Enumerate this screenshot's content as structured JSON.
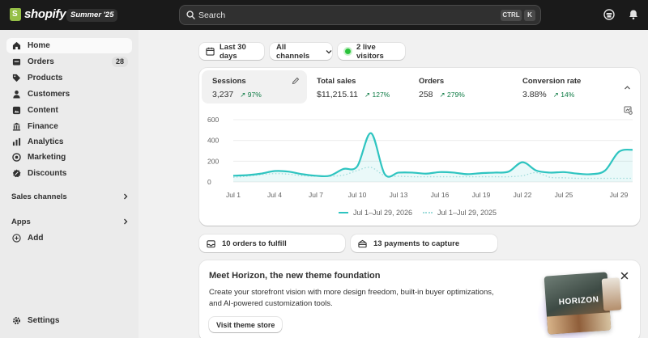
{
  "brand": {
    "name": "shopify",
    "edition": "Summer '25"
  },
  "search": {
    "placeholder": "Search",
    "shortcut_ctrl": "CTRL",
    "shortcut_key": "K"
  },
  "sidebar": {
    "items": [
      {
        "label": "Home",
        "icon": "home-icon",
        "active": true
      },
      {
        "label": "Orders",
        "icon": "orders-icon",
        "badge": "28"
      },
      {
        "label": "Products",
        "icon": "tag-icon"
      },
      {
        "label": "Customers",
        "icon": "person-icon"
      },
      {
        "label": "Content",
        "icon": "content-icon"
      },
      {
        "label": "Finance",
        "icon": "bank-icon"
      },
      {
        "label": "Analytics",
        "icon": "bar-chart-icon"
      },
      {
        "label": "Marketing",
        "icon": "target-icon"
      },
      {
        "label": "Discounts",
        "icon": "discount-icon"
      }
    ],
    "sales_channels": "Sales channels",
    "apps": "Apps",
    "add": "Add",
    "settings": "Settings"
  },
  "filters": {
    "date_range": "Last 30 days",
    "channels": "All channels",
    "live_visitors": "2 live visitors"
  },
  "metrics": [
    {
      "label": "Sessions",
      "value": "3,237",
      "delta": "↗ 97%"
    },
    {
      "label": "Total sales",
      "value": "$11,215.11",
      "delta": "↗ 127%"
    },
    {
      "label": "Orders",
      "value": "258",
      "delta": "↗ 279%"
    },
    {
      "label": "Conversion rate",
      "value": "3.88%",
      "delta": "↗ 14%"
    }
  ],
  "chart_data": {
    "type": "line",
    "ylim": [
      0,
      600
    ],
    "yticks": [
      "600",
      "400",
      "200",
      "0"
    ],
    "x_tick_labels": [
      "Jul 1",
      "Jul 4",
      "Jul 7",
      "Jul 10",
      "Jul 13",
      "Jul 16",
      "Jul 19",
      "Jul 22",
      "Jul 25",
      "Jul 29"
    ],
    "x": [
      "Jul 1",
      "Jul 2",
      "Jul 3",
      "Jul 4",
      "Jul 5",
      "Jul 6",
      "Jul 7",
      "Jul 8",
      "Jul 9",
      "Jul 10",
      "Jul 11",
      "Jul 12",
      "Jul 13",
      "Jul 14",
      "Jul 15",
      "Jul 16",
      "Jul 17",
      "Jul 18",
      "Jul 19",
      "Jul 20",
      "Jul 21",
      "Jul 22",
      "Jul 23",
      "Jul 24",
      "Jul 25",
      "Jul 26",
      "Jul 27",
      "Jul 28",
      "Jul 29",
      "Jul 30"
    ],
    "series": [
      {
        "name": "Jul 1–Jul 29, 2026",
        "color": "#2ec4c0",
        "style": "solid",
        "values": [
          60,
          65,
          80,
          105,
          100,
          75,
          60,
          60,
          125,
          150,
          470,
          75,
          90,
          90,
          80,
          95,
          90,
          75,
          85,
          90,
          100,
          190,
          110,
          90,
          95,
          80,
          75,
          110,
          290,
          310
        ]
      },
      {
        "name": "Jul 1–Jul 29, 2025",
        "color": "#9fdcdb",
        "style": "dotted",
        "values": [
          45,
          55,
          70,
          80,
          75,
          60,
          55,
          55,
          65,
          110,
          140,
          60,
          55,
          50,
          50,
          50,
          50,
          50,
          50,
          50,
          50,
          60,
          90,
          45,
          40,
          35,
          35,
          35,
          35,
          35
        ]
      }
    ]
  },
  "tasks": {
    "fulfill": "10 orders to fulfill",
    "capture": "13 payments to capture"
  },
  "horizon": {
    "title": "Meet Horizon, the new theme foundation",
    "description": "Create your storefront vision with more design freedom, built-in buyer optimizations, and AI-powered customization tools.",
    "button": "Visit theme store",
    "art_label": "HORIZON"
  }
}
